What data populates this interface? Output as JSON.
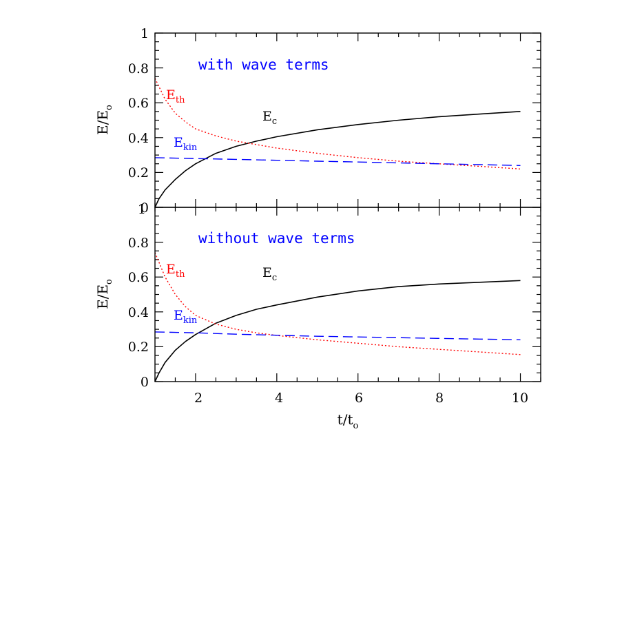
{
  "chart_data": [
    {
      "type": "line",
      "panel": "top",
      "annotation": "with wave terms",
      "ylabel": "E/E",
      "ylabel_sub": "o",
      "xlim": [
        1,
        10.5
      ],
      "ylim": [
        0,
        1
      ],
      "xticks": [
        2,
        4,
        6,
        8,
        10
      ],
      "yticks": [
        0,
        0.2,
        0.4,
        0.6,
        0.8,
        1
      ],
      "ytick_labels": [
        "0",
        "0.2",
        "0.4",
        "0.6",
        "0.8",
        "1"
      ],
      "series": [
        {
          "name": "E",
          "name_sub": "c",
          "color": "#000000",
          "style": "solid",
          "x": [
            1.0,
            1.1,
            1.25,
            1.5,
            1.75,
            2.0,
            2.5,
            3.0,
            3.5,
            4.0,
            5.0,
            6.0,
            7.0,
            8.0,
            9.0,
            10.0
          ],
          "y": [
            0.0,
            0.05,
            0.1,
            0.16,
            0.21,
            0.25,
            0.31,
            0.35,
            0.38,
            0.405,
            0.445,
            0.475,
            0.5,
            0.52,
            0.535,
            0.55
          ]
        },
        {
          "name": "E",
          "name_sub": "th",
          "color": "#ff0000",
          "style": "dotted",
          "x": [
            1.0,
            1.25,
            1.5,
            1.75,
            2.0,
            2.5,
            3.0,
            3.5,
            4.0,
            5.0,
            6.0,
            7.0,
            8.0,
            9.0,
            10.0
          ],
          "y": [
            0.74,
            0.62,
            0.54,
            0.49,
            0.45,
            0.41,
            0.38,
            0.36,
            0.34,
            0.31,
            0.285,
            0.265,
            0.25,
            0.235,
            0.22
          ]
        },
        {
          "name": "E",
          "name_sub": "kin",
          "color": "#0000ff",
          "style": "dashed",
          "x": [
            1.0,
            2.0,
            3.0,
            4.0,
            5.0,
            6.0,
            7.0,
            8.0,
            9.0,
            10.0
          ],
          "y": [
            0.285,
            0.28,
            0.275,
            0.27,
            0.265,
            0.26,
            0.255,
            0.25,
            0.245,
            0.24
          ]
        }
      ]
    },
    {
      "type": "line",
      "panel": "bottom",
      "annotation": "without wave terms",
      "ylabel": "E/E",
      "ylabel_sub": "o",
      "xlabel": "t/t",
      "xlabel_sub": "o",
      "xlim": [
        1,
        10.5
      ],
      "ylim": [
        0,
        1
      ],
      "xticks": [
        2,
        4,
        6,
        8,
        10
      ],
      "xtick_labels": [
        "2",
        "4",
        "6",
        "8",
        "10"
      ],
      "yticks": [
        0,
        0.2,
        0.4,
        0.6,
        0.8
      ],
      "ytick_labels": [
        "0",
        "0.2",
        "0.4",
        "0.6",
        "0.8"
      ],
      "series": [
        {
          "name": "E",
          "name_sub": "c",
          "color": "#000000",
          "style": "solid",
          "x": [
            1.0,
            1.1,
            1.25,
            1.5,
            1.75,
            2.0,
            2.5,
            3.0,
            3.5,
            4.0,
            5.0,
            6.0,
            7.0,
            8.0,
            9.0,
            10.0
          ],
          "y": [
            0.0,
            0.05,
            0.11,
            0.18,
            0.23,
            0.27,
            0.335,
            0.38,
            0.415,
            0.44,
            0.485,
            0.52,
            0.545,
            0.56,
            0.57,
            0.58
          ]
        },
        {
          "name": "E",
          "name_sub": "th",
          "color": "#ff0000",
          "style": "dotted",
          "x": [
            1.0,
            1.25,
            1.5,
            1.75,
            2.0,
            2.5,
            3.0,
            3.5,
            4.0,
            5.0,
            6.0,
            7.0,
            8.0,
            9.0,
            10.0
          ],
          "y": [
            0.74,
            0.6,
            0.5,
            0.43,
            0.38,
            0.33,
            0.3,
            0.28,
            0.265,
            0.24,
            0.22,
            0.2,
            0.185,
            0.17,
            0.155
          ]
        },
        {
          "name": "E",
          "name_sub": "kin",
          "color": "#0000ff",
          "style": "dashed",
          "x": [
            1.0,
            2.0,
            3.0,
            4.0,
            5.0,
            6.0,
            7.0,
            8.0,
            9.0,
            10.0
          ],
          "y": [
            0.285,
            0.28,
            0.272,
            0.266,
            0.26,
            0.256,
            0.252,
            0.248,
            0.244,
            0.24
          ]
        }
      ]
    }
  ]
}
